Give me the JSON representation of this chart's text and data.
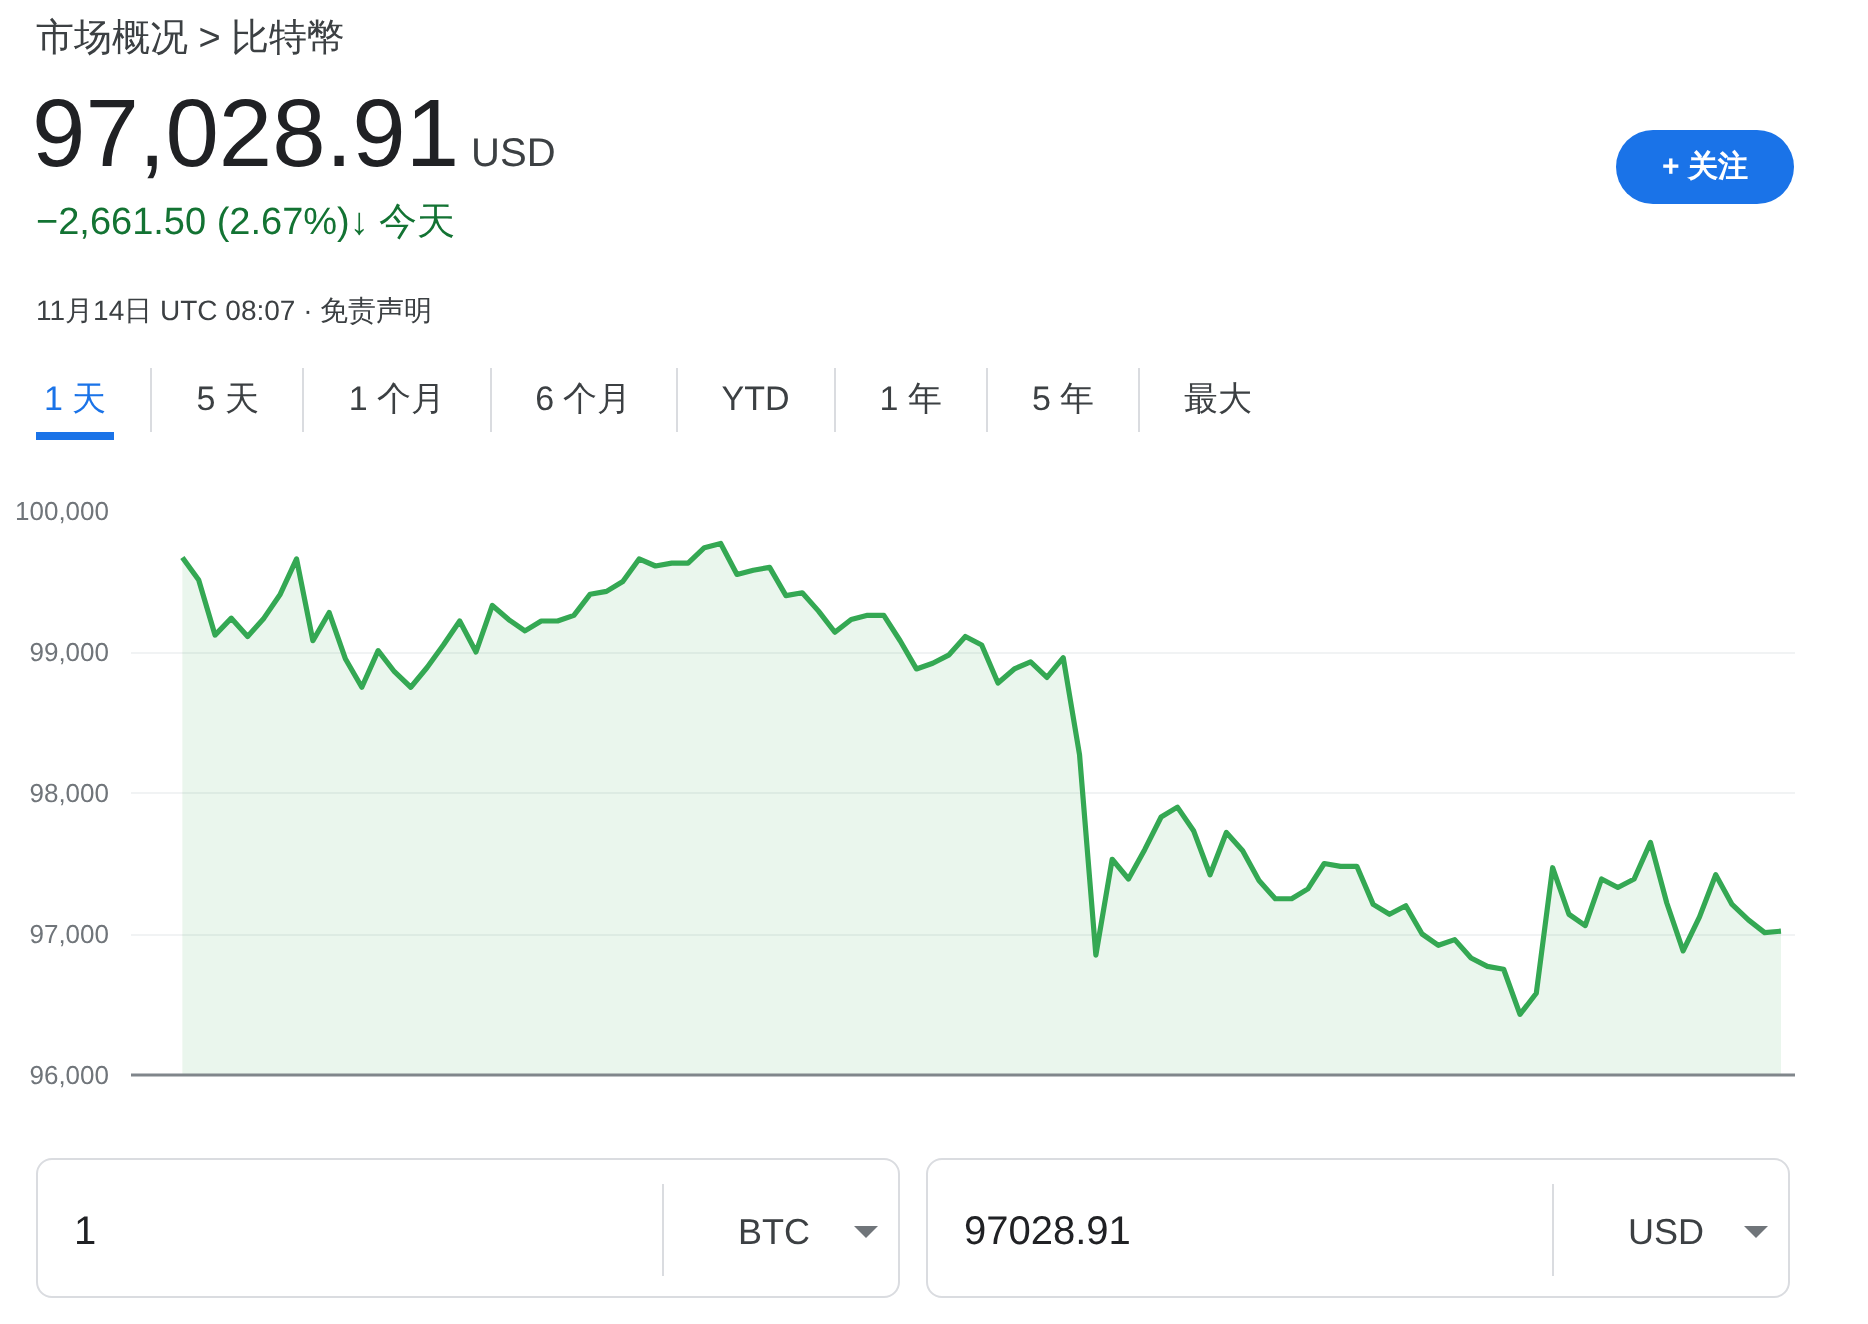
{
  "chart_data": {
    "type": "area",
    "annotations": [
      "市场概况 > 比特幣",
      "97,028.91",
      "USD",
      "−2,661.50 (2.67%)↓ 今天",
      "11月14日 UTC 08:07 · 免责声明",
      "+ 关注",
      "1 天",
      "5 天",
      "1 个月",
      "6 个月",
      "YTD",
      "1 年",
      "5 年",
      "最大",
      "1",
      "BTC",
      "97028.91",
      "USD"
    ],
    "categories": [
      null,
      null,
      null,
      null,
      null,
      null,
      null,
      null,
      null,
      null,
      null,
      null,
      null,
      null,
      null,
      null,
      null,
      null,
      null,
      null,
      null,
      null,
      null,
      null,
      null,
      null,
      null,
      null,
      null,
      null,
      null,
      null,
      null,
      null,
      null,
      null,
      null,
      null,
      null,
      null,
      null,
      null,
      null,
      null,
      null,
      null,
      null,
      null,
      null,
      null,
      null,
      null,
      null,
      null,
      null,
      null,
      null,
      null,
      null,
      null,
      null,
      null,
      null,
      null,
      null,
      null,
      null,
      null,
      null,
      null,
      null,
      null,
      null,
      null,
      null,
      null,
      null,
      null,
      null,
      null,
      null,
      null,
      null,
      null,
      null,
      null,
      null,
      null,
      null,
      null,
      null,
      null,
      null,
      null,
      null,
      null,
      null,
      null,
      null
    ],
    "series": [
      {
        "color": "#34a853",
        "values": [
          99670,
          99510,
          99120,
          99240,
          99110,
          99240,
          99410,
          99660,
          99080,
          99280,
          98950,
          98750,
          99010,
          98860,
          98750,
          98890,
          99050,
          99220,
          99000,
          99330,
          99230,
          99150,
          99220,
          99220,
          99260,
          99410,
          99430,
          99500,
          99660,
          99610,
          99630,
          99630,
          99740,
          99770,
          99550,
          99580,
          99600,
          99400,
          99420,
          99290,
          99140,
          99230,
          99260,
          99260,
          99080,
          98880,
          98920,
          98980,
          99110,
          99050,
          98780,
          98880,
          98930,
          98820,
          98960,
          98270,
          96850,
          97530,
          97390,
          97600,
          97830,
          97900,
          97730,
          97420,
          97720,
          97590,
          97380,
          97250,
          97250,
          97320,
          97500,
          97480,
          97480,
          97210,
          97140,
          97200,
          97000,
          96920,
          96960,
          96830,
          96770,
          96750,
          96430,
          96580,
          97470,
          97140,
          97060,
          97390,
          97330,
          97390,
          97650,
          97220,
          96880,
          97120,
          97420,
          97210,
          97100,
          97010,
          97020
        ]
      }
    ],
    "ylim": [
      96000,
      100000
    ],
    "yticks": [
      {
        "value": 96000,
        "label": "96,000"
      },
      {
        "value": 97000,
        "label": "97,000"
      },
      {
        "value": 98000,
        "label": "98,000"
      },
      {
        "value": 99000,
        "label": "99,000"
      },
      {
        "value": 100000,
        "label": "100,000"
      }
    ],
    "grid": "y",
    "tick_labels": "y"
  }
}
